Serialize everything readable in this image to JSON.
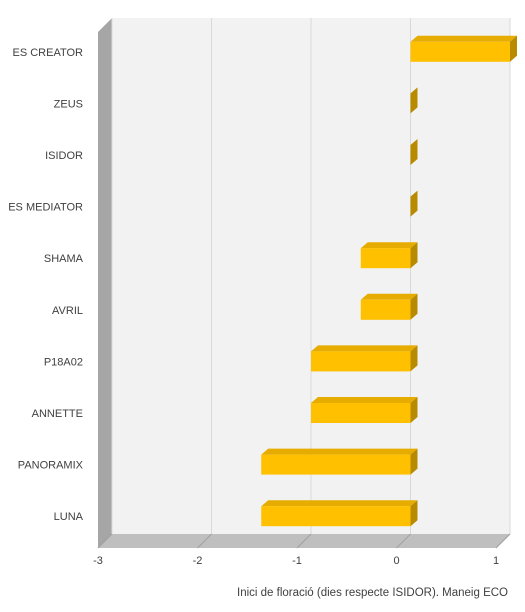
{
  "chart_data": {
    "type": "bar",
    "orientation": "horizontal",
    "style": "3d",
    "title": "",
    "xlabel": "Inici de floració (dies respecte ISIDOR). Maneig ECO",
    "ylabel": "",
    "categories": [
      "ES CREATOR",
      "ZEUS",
      "ISIDOR",
      "ES MEDIATOR",
      "SHAMA",
      "AVRIL",
      "P18A02",
      "ANNETTE",
      "PANORAMIX",
      "LUNA"
    ],
    "values": [
      1,
      0,
      0,
      0,
      -0.5,
      -0.5,
      -1,
      -1,
      -1.5,
      -1.5
    ],
    "xlim": [
      -3,
      1
    ],
    "xticks": [
      "-3",
      "-2",
      "-1",
      "0",
      "1"
    ],
    "grid": true,
    "legend": "none",
    "colors": {
      "bar_front": "#ffc000",
      "bar_top": "#e6ac00",
      "bar_side": "#b88a00",
      "back_wall": "#f2f2f2",
      "side_wall": "#a6a6a6",
      "floor": "#bfbfbf",
      "gridline": "#d9d9d9"
    }
  }
}
